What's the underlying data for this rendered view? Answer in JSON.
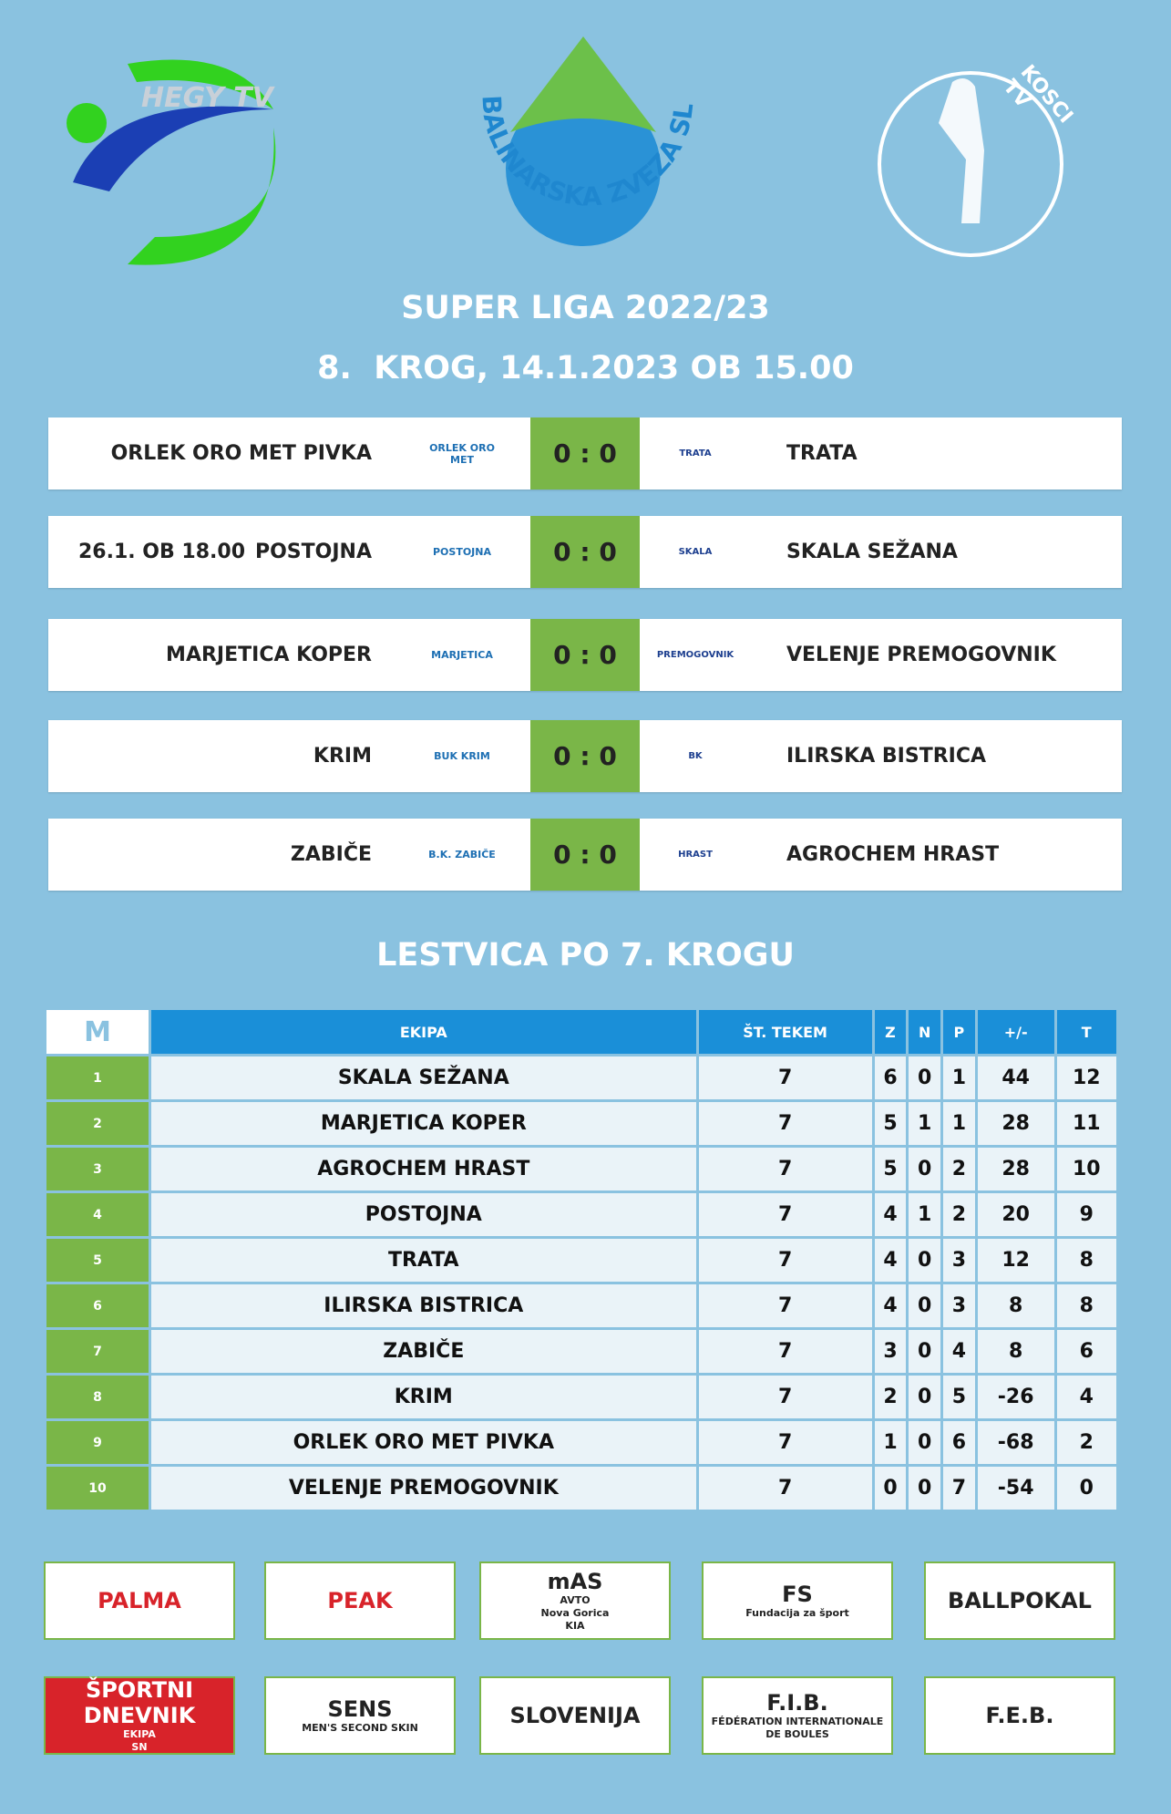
{
  "header": {
    "logos": [
      "HEGY TV",
      "BALINARSKA ZVEZA SLOVENIJE",
      "KOSCI TV"
    ],
    "title": "SUPER LIGA 2022/23",
    "subtitle": "8.  KROG, 14.1.2023 OB 15.00"
  },
  "matches": [
    {
      "home": "ORLEK ORO MET PIVKA",
      "home_logo": "ORLEK ORO MET",
      "score": "0 : 0",
      "away": "TRATA",
      "away_logo": "TRATA"
    },
    {
      "note": "26.1. OB 18.00",
      "home": "POSTOJNA",
      "home_logo": "POSTOJNA",
      "score": "0 : 0",
      "away": "SKALA SEŽANA",
      "away_logo": "SKALA"
    },
    {
      "home": "MARJETICA KOPER",
      "home_logo": "MARJETICA",
      "score": "0 : 0",
      "away": "VELENJE PREMOGOVNIK",
      "away_logo": "PREMOGOVNIK"
    },
    {
      "home": "KRIM",
      "home_logo": "BUK KRIM",
      "score": "0 : 0",
      "away": "ILIRSKA BISTRICA",
      "away_logo": "BK"
    },
    {
      "home": "ZABIČE",
      "home_logo": "B.K. ZABIČE",
      "score": "0 : 0",
      "away": "AGROCHEM HRAST",
      "away_logo": "HRAST"
    }
  ],
  "standings": {
    "title": "LESTVICA PO 7. KROGU",
    "columns": [
      "M",
      "EKIPA",
      "ŠT. TEKEM",
      "Z",
      "N",
      "P",
      "+/-",
      "T"
    ],
    "rows": [
      [
        1,
        "SKALA SEŽANA",
        7,
        6,
        0,
        1,
        44,
        12
      ],
      [
        2,
        "MARJETICA KOPER",
        7,
        5,
        1,
        1,
        28,
        11
      ],
      [
        3,
        "AGROCHEM HRAST",
        7,
        5,
        0,
        2,
        28,
        10
      ],
      [
        4,
        "POSTOJNA",
        7,
        4,
        1,
        2,
        20,
        9
      ],
      [
        5,
        "TRATA",
        7,
        4,
        0,
        3,
        12,
        8
      ],
      [
        6,
        "ILIRSKA BISTRICA",
        7,
        4,
        0,
        3,
        8,
        8
      ],
      [
        7,
        "ZABIČE",
        7,
        3,
        0,
        4,
        8,
        6
      ],
      [
        8,
        "KRIM",
        7,
        2,
        0,
        5,
        -26,
        4
      ],
      [
        9,
        "ORLEK ORO MET PIVKA",
        7,
        1,
        0,
        6,
        -68,
        2
      ],
      [
        10,
        "VELENJE PREMOGOVNIK",
        7,
        0,
        0,
        7,
        -54,
        0
      ]
    ]
  },
  "sponsors": [
    [
      "PALMA"
    ],
    [
      "PEAK"
    ],
    [
      "mAS",
      "AVTO",
      "Nova Gorica",
      "KIA"
    ],
    [
      "FS",
      "Fundacija za šport"
    ],
    [
      "BALLPOKAL"
    ],
    [
      "ŠPORTNI DNEVNIK",
      "EKIPA",
      "SN"
    ],
    [
      "SENS",
      "MEN'S SECOND SKIN"
    ],
    [
      "SLOVENIJA"
    ],
    [
      "F.I.B.",
      "FÉDÉRATION INTERNATIONALE DE BOULES"
    ],
    [
      "F.E.B."
    ]
  ]
}
